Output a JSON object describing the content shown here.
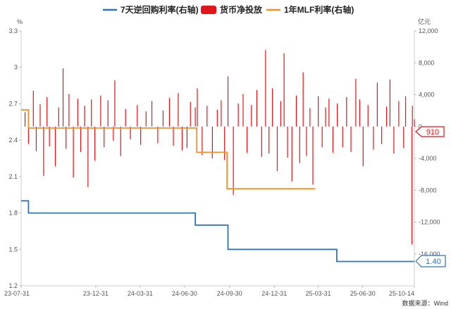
{
  "chart_data": {
    "type": "bar+line",
    "legend": [
      {
        "name": "7天逆回购利率(右轴)",
        "color": "#2e75b6",
        "kind": "line"
      },
      {
        "name": "货币净投放",
        "color": "#e0161b",
        "kind": "bar"
      },
      {
        "name": "1年MLF利率(右轴)",
        "color": "#f0912a",
        "kind": "line"
      }
    ],
    "left_axis": {
      "unit": "%",
      "min": 1.2,
      "max": 3.3,
      "ticks": [
        "3.3",
        "3",
        "2.7",
        "2.4",
        "2.1",
        "1.8",
        "1.5",
        "1.2"
      ]
    },
    "right_axis": {
      "unit": "亿元",
      "min": -20000,
      "max": 12000,
      "ticks": [
        "12,000",
        "8,000",
        "4,000",
        "0",
        "-4,000",
        "-8,000",
        "-12,000",
        "-16,000"
      ]
    },
    "x_axis": {
      "start": "2023-07-31",
      "end": "2025-10-14",
      "tick_labels": [
        {
          "label": "23-07-31",
          "date": "2023-07-31"
        },
        {
          "label": "23-12-31",
          "date": "2023-12-31"
        },
        {
          "label": "24-03-31",
          "date": "2024-03-31"
        },
        {
          "label": "24-06-30",
          "date": "2024-06-30"
        },
        {
          "label": "24-09-30",
          "date": "2024-09-30"
        },
        {
          "label": "24-12-31",
          "date": "2024-12-31"
        },
        {
          "label": "25-03-31",
          "date": "2025-03-31"
        },
        {
          "label": "25-06-30",
          "date": "2025-06-30"
        },
        {
          "label": "25-10-14",
          "date": "2025-10-14"
        }
      ]
    },
    "series_repo_7d": {
      "name": "7天逆回购利率(右轴)",
      "points": [
        {
          "date": "2023-07-31",
          "value": 1.9
        },
        {
          "date": "2023-08-15",
          "value": 1.9
        },
        {
          "date": "2023-08-15",
          "value": 1.8
        },
        {
          "date": "2024-07-22",
          "value": 1.8
        },
        {
          "date": "2024-07-22",
          "value": 1.7
        },
        {
          "date": "2024-09-27",
          "value": 1.7
        },
        {
          "date": "2024-09-27",
          "value": 1.5
        },
        {
          "date": "2025-05-08",
          "value": 1.5
        },
        {
          "date": "2025-05-08",
          "value": 1.4
        },
        {
          "date": "2025-10-14",
          "value": 1.4
        }
      ],
      "last_value_label": "1.40"
    },
    "series_mlf_1y": {
      "name": "1年MLF利率(右轴)",
      "points": [
        {
          "date": "2023-07-31",
          "value": 2.65
        },
        {
          "date": "2023-08-15",
          "value": 2.65
        },
        {
          "date": "2023-08-15",
          "value": 2.5
        },
        {
          "date": "2024-07-25",
          "value": 2.5
        },
        {
          "date": "2024-07-25",
          "value": 2.3
        },
        {
          "date": "2024-09-25",
          "value": 2.3
        },
        {
          "date": "2024-09-25",
          "value": 2.0
        },
        {
          "date": "2025-03-25",
          "value": 2.0
        }
      ]
    },
    "series_net_injection": {
      "name": "货币净投放",
      "last_value_label": "910",
      "last_value": 910,
      "bars": [
        {
          "date": "2023-08-08",
          "value": 1800
        },
        {
          "date": "2023-08-15",
          "value": -2200
        },
        {
          "date": "2023-08-25",
          "value": 4500
        },
        {
          "date": "2023-08-31",
          "value": -3100
        },
        {
          "date": "2023-09-08",
          "value": 2800
        },
        {
          "date": "2023-09-15",
          "value": -6200
        },
        {
          "date": "2023-09-22",
          "value": 3700
        },
        {
          "date": "2023-09-27",
          "value": -2500
        },
        {
          "date": "2023-10-09",
          "value": -5000
        },
        {
          "date": "2023-10-16",
          "value": 2400
        },
        {
          "date": "2023-10-25",
          "value": 7300
        },
        {
          "date": "2023-10-31",
          "value": -2800
        },
        {
          "date": "2023-11-06",
          "value": 4100
        },
        {
          "date": "2023-11-15",
          "value": -6400
        },
        {
          "date": "2023-11-24",
          "value": 3500
        },
        {
          "date": "2023-11-30",
          "value": -3200
        },
        {
          "date": "2023-12-08",
          "value": 2600
        },
        {
          "date": "2023-12-15",
          "value": -7600
        },
        {
          "date": "2023-12-22",
          "value": 3400
        },
        {
          "date": "2023-12-29",
          "value": -4300
        },
        {
          "date": "2024-01-10",
          "value": 3900
        },
        {
          "date": "2024-01-17",
          "value": -2600
        },
        {
          "date": "2024-01-25",
          "value": 3300
        },
        {
          "date": "2024-02-05",
          "value": -1800
        },
        {
          "date": "2024-02-08",
          "value": 5800
        },
        {
          "date": "2024-02-20",
          "value": -3700
        },
        {
          "date": "2024-03-01",
          "value": 2200
        },
        {
          "date": "2024-03-11",
          "value": -1600
        },
        {
          "date": "2024-03-25",
          "value": 2700
        },
        {
          "date": "2024-04-01",
          "value": -2300
        },
        {
          "date": "2024-04-12",
          "value": 1900
        },
        {
          "date": "2024-04-24",
          "value": 3200
        },
        {
          "date": "2024-05-06",
          "value": -2100
        },
        {
          "date": "2024-05-17",
          "value": 2000
        },
        {
          "date": "2024-05-30",
          "value": 3600
        },
        {
          "date": "2024-06-07",
          "value": -2400
        },
        {
          "date": "2024-06-17",
          "value": 4200
        },
        {
          "date": "2024-06-25",
          "value": -3000
        },
        {
          "date": "2024-07-05",
          "value": -2700
        },
        {
          "date": "2024-07-12",
          "value": 3100
        },
        {
          "date": "2024-07-22",
          "value": 2400
        },
        {
          "date": "2024-07-26",
          "value": 4800
        },
        {
          "date": "2024-08-05",
          "value": -3600
        },
        {
          "date": "2024-08-15",
          "value": 2600
        },
        {
          "date": "2024-08-26",
          "value": -4000
        },
        {
          "date": "2024-09-05",
          "value": 2100
        },
        {
          "date": "2024-09-13",
          "value": 3300
        },
        {
          "date": "2024-09-20",
          "value": -4200
        },
        {
          "date": "2024-09-27",
          "value": 6300
        },
        {
          "date": "2024-10-08",
          "value": -8600
        },
        {
          "date": "2024-10-18",
          "value": 2900
        },
        {
          "date": "2024-10-28",
          "value": 4100
        },
        {
          "date": "2024-11-05",
          "value": -3300
        },
        {
          "date": "2024-11-14",
          "value": 2700
        },
        {
          "date": "2024-11-25",
          "value": 4600
        },
        {
          "date": "2024-12-05",
          "value": -3800
        },
        {
          "date": "2024-12-13",
          "value": 9600
        },
        {
          "date": "2024-12-20",
          "value": -3400
        },
        {
          "date": "2024-12-27",
          "value": 4800
        },
        {
          "date": "2025-01-06",
          "value": -5600
        },
        {
          "date": "2025-01-13",
          "value": 3200
        },
        {
          "date": "2025-01-20",
          "value": 9200
        },
        {
          "date": "2025-01-27",
          "value": -3900
        },
        {
          "date": "2025-02-05",
          "value": -6900
        },
        {
          "date": "2025-02-14",
          "value": 3900
        },
        {
          "date": "2025-02-21",
          "value": -4600
        },
        {
          "date": "2025-02-28",
          "value": 6800
        },
        {
          "date": "2025-03-07",
          "value": -3700
        },
        {
          "date": "2025-03-14",
          "value": 2300
        },
        {
          "date": "2025-03-20",
          "value": -7300
        },
        {
          "date": "2025-03-31",
          "value": 3800
        },
        {
          "date": "2025-04-08",
          "value": -2600
        },
        {
          "date": "2025-04-15",
          "value": 2400
        },
        {
          "date": "2025-04-22",
          "value": 3500
        },
        {
          "date": "2025-04-30",
          "value": -3300
        },
        {
          "date": "2025-05-09",
          "value": 2900
        },
        {
          "date": "2025-05-20",
          "value": -2600
        },
        {
          "date": "2025-05-28",
          "value": 3700
        },
        {
          "date": "2025-06-06",
          "value": -3200
        },
        {
          "date": "2025-06-16",
          "value": 6000
        },
        {
          "date": "2025-06-24",
          "value": 3400
        },
        {
          "date": "2025-07-01",
          "value": -5000
        },
        {
          "date": "2025-07-11",
          "value": 2700
        },
        {
          "date": "2025-07-22",
          "value": -2900
        },
        {
          "date": "2025-07-30",
          "value": 5500
        },
        {
          "date": "2025-08-08",
          "value": -2200
        },
        {
          "date": "2025-08-18",
          "value": 2500
        },
        {
          "date": "2025-08-25",
          "value": 5900
        },
        {
          "date": "2025-09-02",
          "value": -3400
        },
        {
          "date": "2025-09-12",
          "value": 3200
        },
        {
          "date": "2025-09-22",
          "value": -2700
        },
        {
          "date": "2025-09-26",
          "value": 3800
        },
        {
          "date": "2025-10-09",
          "value": -14800
        },
        {
          "date": "2025-10-10",
          "value": 2600
        },
        {
          "date": "2025-10-14",
          "value": 910
        }
      ]
    },
    "source": "数据来源：Wind"
  }
}
